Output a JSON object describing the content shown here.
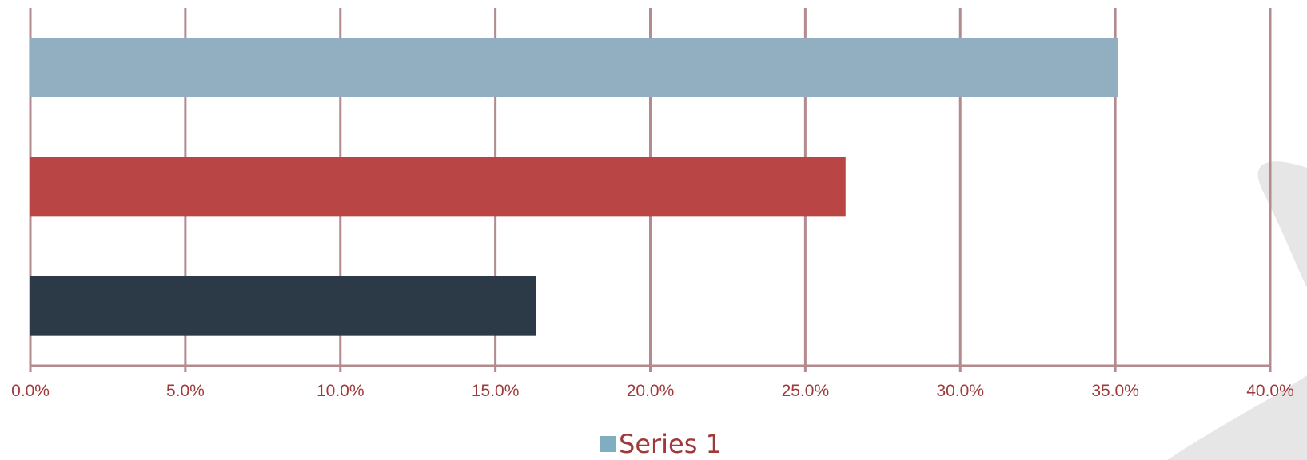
{
  "chart_data": {
    "type": "bar",
    "orientation": "horizontal",
    "categories": [
      "",
      "",
      ""
    ],
    "series": [
      {
        "name": "Series 1",
        "values": [
          0.351,
          0.263,
          0.163
        ]
      }
    ],
    "bar_colors": [
      "#91afc1",
      "#b94645",
      "#2c3a47"
    ],
    "x_ticks": [
      "0.0%",
      "5.0%",
      "10.0%",
      "15.0%",
      "20.0%",
      "25.0%",
      "30.0%",
      "35.0%",
      "40.0%"
    ],
    "xlim": [
      0,
      0.4
    ],
    "grid": "vertical",
    "legend_position": "bottom",
    "colors": {
      "grid": "#b38a8d",
      "axis_text": "#9e3a3c",
      "legend_swatch": "#7faec1"
    }
  }
}
